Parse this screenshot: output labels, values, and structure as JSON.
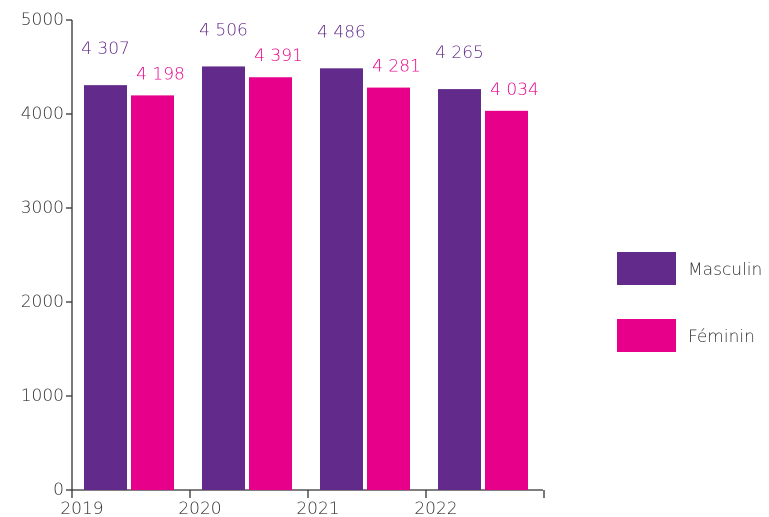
{
  "chart_data": {
    "type": "bar",
    "categories": [
      "2019",
      "2020",
      "2021",
      "2022"
    ],
    "series": [
      {
        "name": "Masculin",
        "color": "#622a8a",
        "values": [
          4307,
          4506,
          4486,
          4265
        ],
        "value_labels": [
          "4 307",
          "4 506",
          "4  486",
          "4 265"
        ]
      },
      {
        "name": "Féminin",
        "color": "#e6008a",
        "values": [
          4198,
          4391,
          4281,
          4034
        ],
        "value_labels": [
          "4 198",
          "4 391",
          "4 281",
          "4 034"
        ]
      }
    ],
    "ylim": [
      0,
      5000
    ],
    "yticks": [
      0,
      1000,
      2000,
      3000,
      4000,
      5000
    ],
    "legend": "right"
  }
}
